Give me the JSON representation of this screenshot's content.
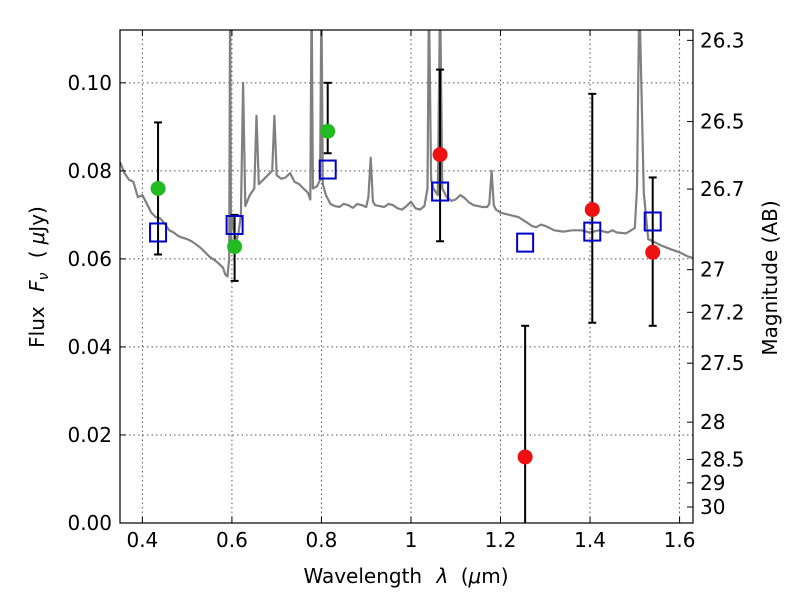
{
  "chart_data": {
    "type": "scatter",
    "x_label": "Wavelength",
    "x_label_symbol": "λ",
    "x_label_unit_prefix": "(",
    "x_label_unit_mu": "μ",
    "x_label_unit_suffix": "m)",
    "y_label": "Flux",
    "y_label_symbol": "F",
    "y_label_symbol_sub": "ν",
    "y_label_unit_prefix": "(",
    "y_label_unit_mu": "μ",
    "y_label_unit_suffix": "Jy)",
    "y2_label": "Magnitude (AB)",
    "xlim": [
      0.35,
      1.63
    ],
    "ylim": [
      0.0,
      0.112
    ],
    "grid": true,
    "x_ticks": [
      "0.4",
      "0.6",
      "0.8",
      "1",
      "1.2",
      "1.4",
      "1.6"
    ],
    "y_ticks": [
      "0.00",
      "0.02",
      "0.04",
      "0.06",
      "0.08",
      "0.10"
    ],
    "magnitude_ticks": [
      "26.3",
      "26.5",
      "26.7",
      "27",
      "27.2",
      "27.5",
      "28",
      "28.5",
      "29",
      "30"
    ],
    "colors": {
      "model": "#808080",
      "green": "#22bb22",
      "red": "#ee1111",
      "square": "#0000cc",
      "errorbar": "#000000"
    },
    "series": [
      {
        "marker": "green-circle",
        "points": [
          {
            "x": 0.435,
            "y": 0.076
          },
          {
            "x": 0.606,
            "y": 0.0628
          },
          {
            "x": 0.814,
            "y": 0.089
          }
        ]
      },
      {
        "marker": "red-circle",
        "points": [
          {
            "x": 1.065,
            "y": 0.0837
          },
          {
            "x": 1.255,
            "y": 0.015
          },
          {
            "x": 1.405,
            "y": 0.0712
          },
          {
            "x": 1.54,
            "y": 0.0615
          }
        ]
      },
      {
        "marker": "blue-square",
        "points": [
          {
            "x": 0.435,
            "y": 0.066
          },
          {
            "x": 0.606,
            "y": 0.0677
          },
          {
            "x": 0.814,
            "y": 0.0803
          },
          {
            "x": 1.065,
            "y": 0.0753
          },
          {
            "x": 1.255,
            "y": 0.0637
          },
          {
            "x": 1.405,
            "y": 0.0662
          },
          {
            "x": 1.54,
            "y": 0.0685
          }
        ]
      }
    ],
    "error_bars": [
      {
        "x": 0.435,
        "ylow": 0.061,
        "yhigh": 0.091
      },
      {
        "x": 0.606,
        "ylow": 0.055,
        "yhigh": 0.07
      },
      {
        "x": 0.814,
        "ylow": 0.084,
        "yhigh": 0.1
      },
      {
        "x": 1.065,
        "ylow": 0.064,
        "yhigh": 0.103
      },
      {
        "x": 1.255,
        "ylow": 0.0,
        "yhigh": 0.0448
      },
      {
        "x": 1.405,
        "ylow": 0.0455,
        "yhigh": 0.0975
      },
      {
        "x": 1.54,
        "ylow": 0.0448,
        "yhigh": 0.0785
      }
    ],
    "model_spectrum": [
      [
        0.35,
        0.082
      ],
      [
        0.36,
        0.0795
      ],
      [
        0.37,
        0.078
      ],
      [
        0.38,
        0.0775
      ],
      [
        0.39,
        0.074
      ],
      [
        0.4,
        0.0745
      ],
      [
        0.41,
        0.0725
      ],
      [
        0.42,
        0.0705
      ],
      [
        0.43,
        0.0695
      ],
      [
        0.44,
        0.0692
      ],
      [
        0.45,
        0.068
      ],
      [
        0.46,
        0.0665
      ],
      [
        0.47,
        0.066
      ],
      [
        0.48,
        0.0652
      ],
      [
        0.49,
        0.0648
      ],
      [
        0.5,
        0.0645
      ],
      [
        0.51,
        0.064
      ],
      [
        0.52,
        0.0633
      ],
      [
        0.53,
        0.0625
      ],
      [
        0.54,
        0.0615
      ],
      [
        0.55,
        0.0605
      ],
      [
        0.56,
        0.0598
      ],
      [
        0.57,
        0.059
      ],
      [
        0.58,
        0.058
      ],
      [
        0.585,
        0.0565
      ],
      [
        0.59,
        0.056
      ],
      [
        0.594,
        0.06
      ],
      [
        0.596,
        0.12
      ],
      [
        0.598,
        0.064
      ],
      [
        0.6,
        0.07
      ],
      [
        0.605,
        0.066
      ],
      [
        0.61,
        0.064
      ],
      [
        0.615,
        0.066
      ],
      [
        0.62,
        0.07
      ],
      [
        0.625,
        0.1
      ],
      [
        0.63,
        0.072
      ],
      [
        0.64,
        0.0745
      ],
      [
        0.65,
        0.076
      ],
      [
        0.655,
        0.0925
      ],
      [
        0.66,
        0.077
      ],
      [
        0.67,
        0.078
      ],
      [
        0.68,
        0.079
      ],
      [
        0.69,
        0.08
      ],
      [
        0.695,
        0.0925
      ],
      [
        0.7,
        0.079
      ],
      [
        0.71,
        0.0782
      ],
      [
        0.72,
        0.0785
      ],
      [
        0.73,
        0.0795
      ],
      [
        0.74,
        0.0775
      ],
      [
        0.75,
        0.077
      ],
      [
        0.76,
        0.076
      ],
      [
        0.77,
        0.075
      ],
      [
        0.775,
        0.0735
      ],
      [
        0.778,
        0.12
      ],
      [
        0.781,
        0.076
      ],
      [
        0.79,
        0.0765
      ],
      [
        0.797,
        0.078
      ],
      [
        0.8,
        0.12
      ],
      [
        0.803,
        0.077
      ],
      [
        0.81,
        0.0745
      ],
      [
        0.82,
        0.0725
      ],
      [
        0.83,
        0.072
      ],
      [
        0.84,
        0.0718
      ],
      [
        0.85,
        0.0725
      ],
      [
        0.86,
        0.0722
      ],
      [
        0.87,
        0.0716
      ],
      [
        0.88,
        0.0725
      ],
      [
        0.89,
        0.0722
      ],
      [
        0.9,
        0.0718
      ],
      [
        0.905,
        0.074
      ],
      [
        0.91,
        0.083
      ],
      [
        0.915,
        0.073
      ],
      [
        0.92,
        0.0722
      ],
      [
        0.93,
        0.072
      ],
      [
        0.94,
        0.0718
      ],
      [
        0.95,
        0.0725
      ],
      [
        0.96,
        0.0722
      ],
      [
        0.97,
        0.0715
      ],
      [
        0.98,
        0.0712
      ],
      [
        0.99,
        0.072
      ],
      [
        1.0,
        0.073
      ],
      [
        1.01,
        0.0715
      ],
      [
        1.02,
        0.0712
      ],
      [
        1.03,
        0.072
      ],
      [
        1.037,
        0.076
      ],
      [
        1.04,
        0.12
      ],
      [
        1.045,
        0.078
      ],
      [
        1.05,
        0.076
      ],
      [
        1.06,
        0.0745
      ],
      [
        1.065,
        0.12
      ],
      [
        1.07,
        0.076
      ],
      [
        1.08,
        0.074
      ],
      [
        1.09,
        0.0732
      ],
      [
        1.1,
        0.0735
      ],
      [
        1.11,
        0.0745
      ],
      [
        1.12,
        0.0738
      ],
      [
        1.13,
        0.0728
      ],
      [
        1.14,
        0.0722
      ],
      [
        1.15,
        0.072
      ],
      [
        1.16,
        0.0718
      ],
      [
        1.17,
        0.0718
      ],
      [
        1.175,
        0.0725
      ],
      [
        1.18,
        0.08
      ],
      [
        1.185,
        0.0722
      ],
      [
        1.19,
        0.0712
      ],
      [
        1.2,
        0.0705
      ],
      [
        1.22,
        0.07
      ],
      [
        1.24,
        0.0695
      ],
      [
        1.26,
        0.0682
      ],
      [
        1.27,
        0.0675
      ],
      [
        1.28,
        0.0672
      ],
      [
        1.29,
        0.0678
      ],
      [
        1.3,
        0.0675
      ],
      [
        1.32,
        0.0665
      ],
      [
        1.34,
        0.0662
      ],
      [
        1.36,
        0.0665
      ],
      [
        1.38,
        0.0665
      ],
      [
        1.4,
        0.066
      ],
      [
        1.42,
        0.0665
      ],
      [
        1.44,
        0.066
      ],
      [
        1.45,
        0.0665
      ],
      [
        1.46,
        0.066
      ],
      [
        1.48,
        0.0658
      ],
      [
        1.5,
        0.067
      ],
      [
        1.505,
        0.076
      ],
      [
        1.51,
        0.12
      ],
      [
        1.52,
        0.075
      ],
      [
        1.53,
        0.0645
      ],
      [
        1.54,
        0.064
      ],
      [
        1.56,
        0.063
      ],
      [
        1.58,
        0.0622
      ],
      [
        1.6,
        0.0615
      ],
      [
        1.61,
        0.061
      ],
      [
        1.62,
        0.0605
      ],
      [
        1.63,
        0.0602
      ]
    ]
  }
}
